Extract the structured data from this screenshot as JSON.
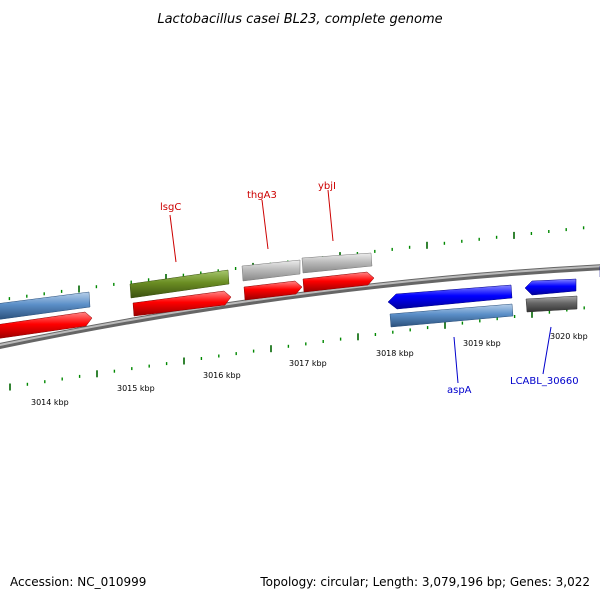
{
  "title": "Lactobacillus casei BL23, complete genome",
  "footer": {
    "accession": "Accession: NC_010999",
    "summary": "Topology: circular; Length: 3,079,196 bp; Genes: 3,022"
  },
  "colors": {
    "cds_forward": "#ff0000",
    "cds_reverse": "#0000ff",
    "gene_label_forward": "#cc0000",
    "gene_label_reverse": "#0000cc",
    "tick_major": "#006600",
    "tick_minor": "#008800",
    "backbone": "#888888",
    "cog_blue": "#5b8fc8",
    "cog_green": "#6b8e23",
    "cog_gray_light": "#bbbbbb",
    "cog_gray_dark": "#666666"
  },
  "scale": {
    "labels": [
      "3014 kbp",
      "3015 kbp",
      "3016 kbp",
      "3017 kbp",
      "3018 kbp",
      "3019 kbp",
      "3020 kbp"
    ]
  },
  "gene_labels": [
    {
      "name": "lsgC",
      "color": "#cc0000"
    },
    {
      "name": "thgA3",
      "color": "#cc0000"
    },
    {
      "name": "ybjI",
      "color": "#cc0000"
    },
    {
      "name": "aspA",
      "color": "#0000cc"
    },
    {
      "name": "LCABL_30660",
      "color": "#0000cc"
    }
  ]
}
